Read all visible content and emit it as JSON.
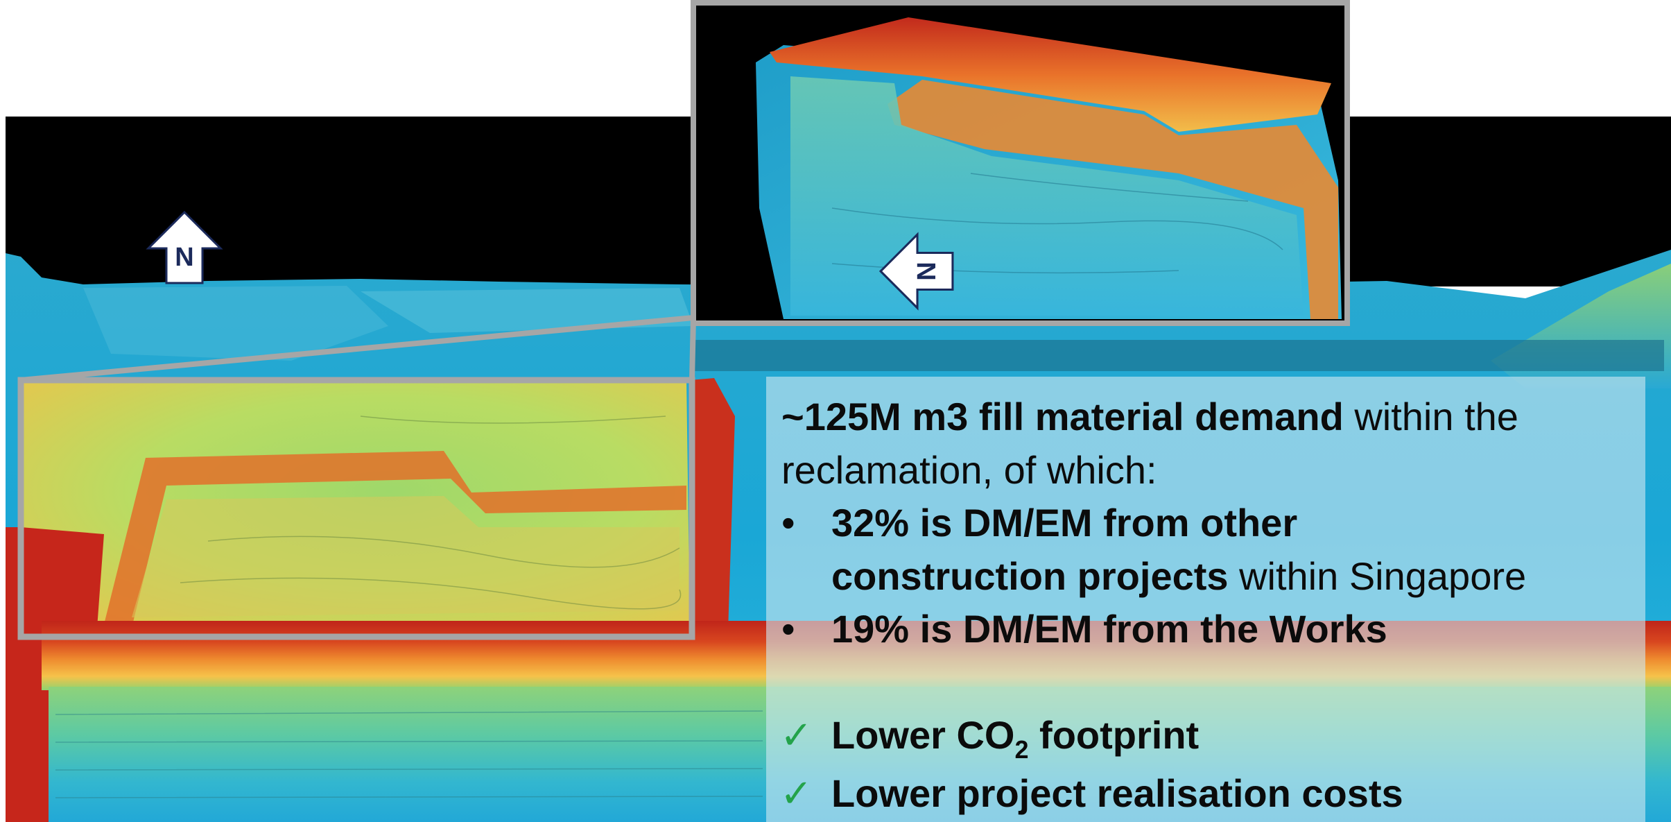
{
  "north_arrows": {
    "main_label": "N",
    "inset_label": "N"
  },
  "info_panel": {
    "intro_bold": "~125M m3 fill material demand",
    "intro_rest": " within the",
    "intro_line2": "reclamation, of which:",
    "bullets": [
      {
        "marker": "•",
        "line1_bold": "32% is DM/EM from other",
        "line2_bold": "construction projects",
        "line2_rest": " within Singapore"
      },
      {
        "marker": "•",
        "line1_bold": "19% is DM/EM from the Works"
      }
    ],
    "benefits": [
      {
        "marker": "✓",
        "pre": "Lower CO",
        "subscript": "2",
        "post": " footprint"
      },
      {
        "marker": "✓",
        "text": "Lower project realisation costs"
      }
    ]
  },
  "colors": {
    "inset_frame": "#a6a6a6",
    "check": "#23a34a",
    "panel": "#cde6f0"
  }
}
